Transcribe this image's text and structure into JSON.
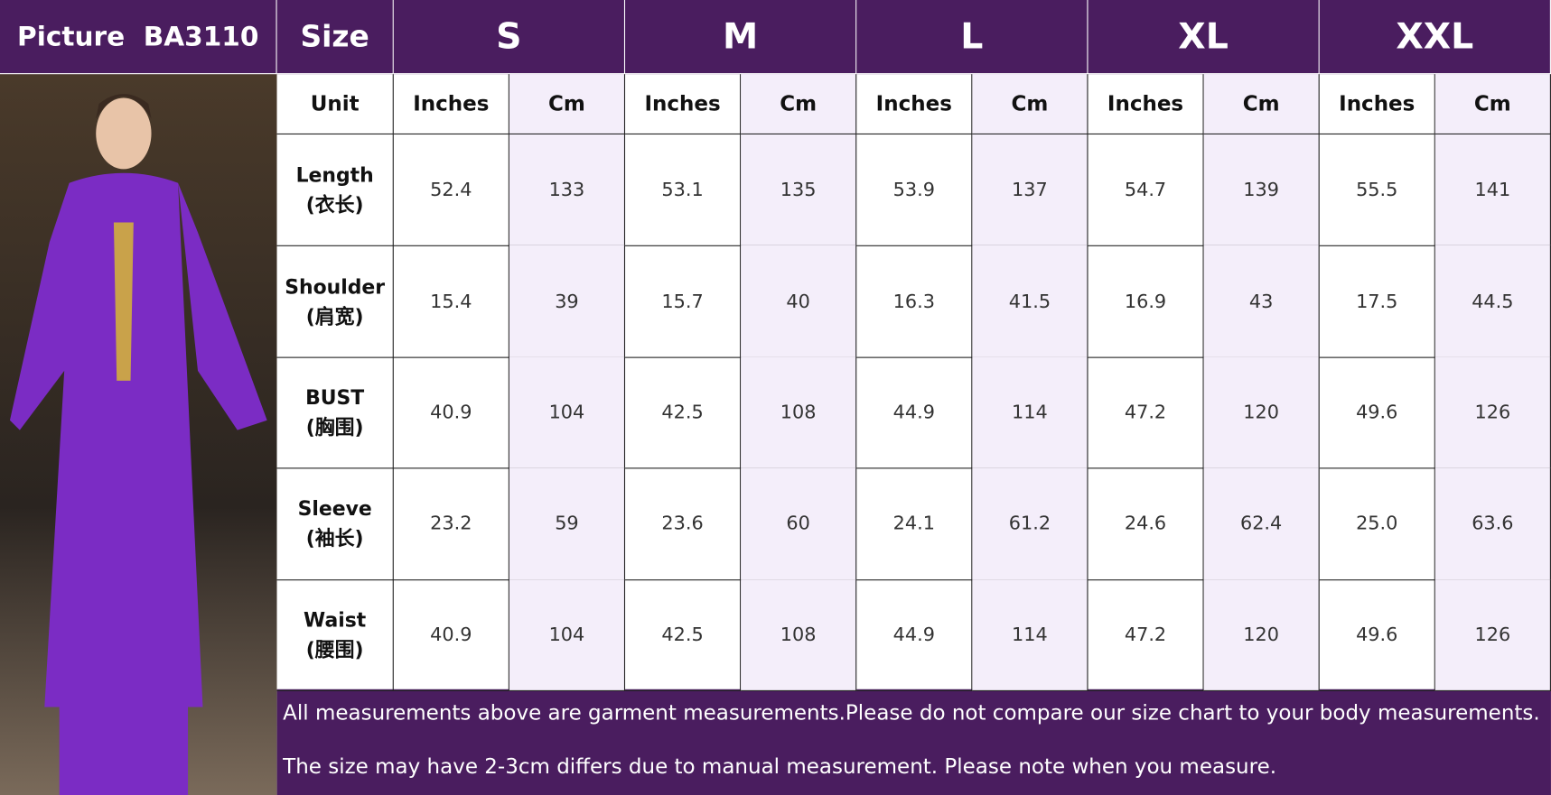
{
  "header": {
    "picture_label": "Picture  BA3110",
    "size_label": "Size",
    "sizes": [
      "S",
      "M",
      "L",
      "XL",
      "XXL"
    ]
  },
  "unit_row": {
    "label": "Unit",
    "units": [
      "Inches",
      "Cm",
      "Inches",
      "Cm",
      "Inches",
      "Cm",
      "Inches",
      "Cm",
      "Inches",
      "Cm"
    ]
  },
  "rows": [
    {
      "label": "Length",
      "label_cn": "(衣长)",
      "values": [
        "52.4",
        "133",
        "53.1",
        "135",
        "53.9",
        "137",
        "54.7",
        "139",
        "55.5",
        "141"
      ]
    },
    {
      "label": "Shoulder",
      "label_cn": "(肩宽)",
      "values": [
        "15.4",
        "39",
        "15.7",
        "40",
        "16.3",
        "41.5",
        "16.9",
        "43",
        "17.5",
        "44.5"
      ]
    },
    {
      "label": "BUST",
      "label_cn": "(胸围)",
      "values": [
        "40.9",
        "104",
        "42.5",
        "108",
        "44.9",
        "114",
        "47.2",
        "120",
        "49.6",
        "126"
      ]
    },
    {
      "label": "Sleeve",
      "label_cn": "(袖长)",
      "values": [
        "23.2",
        "59",
        "23.6",
        "60",
        "24.1",
        "61.2",
        "24.6",
        "62.4",
        "25.0",
        "63.6"
      ]
    },
    {
      "label": "Waist",
      "label_cn": "(腰围)",
      "values": [
        "40.9",
        "104",
        "42.5",
        "108",
        "44.9",
        "114",
        "47.2",
        "120",
        "49.6",
        "126"
      ]
    }
  ],
  "notes": [
    "All measurements above are garment measurements.Please do not compare our size chart to your body measurements.",
    "The size may have 2-3cm differs due to manual measurement. Please note when you measure."
  ]
}
